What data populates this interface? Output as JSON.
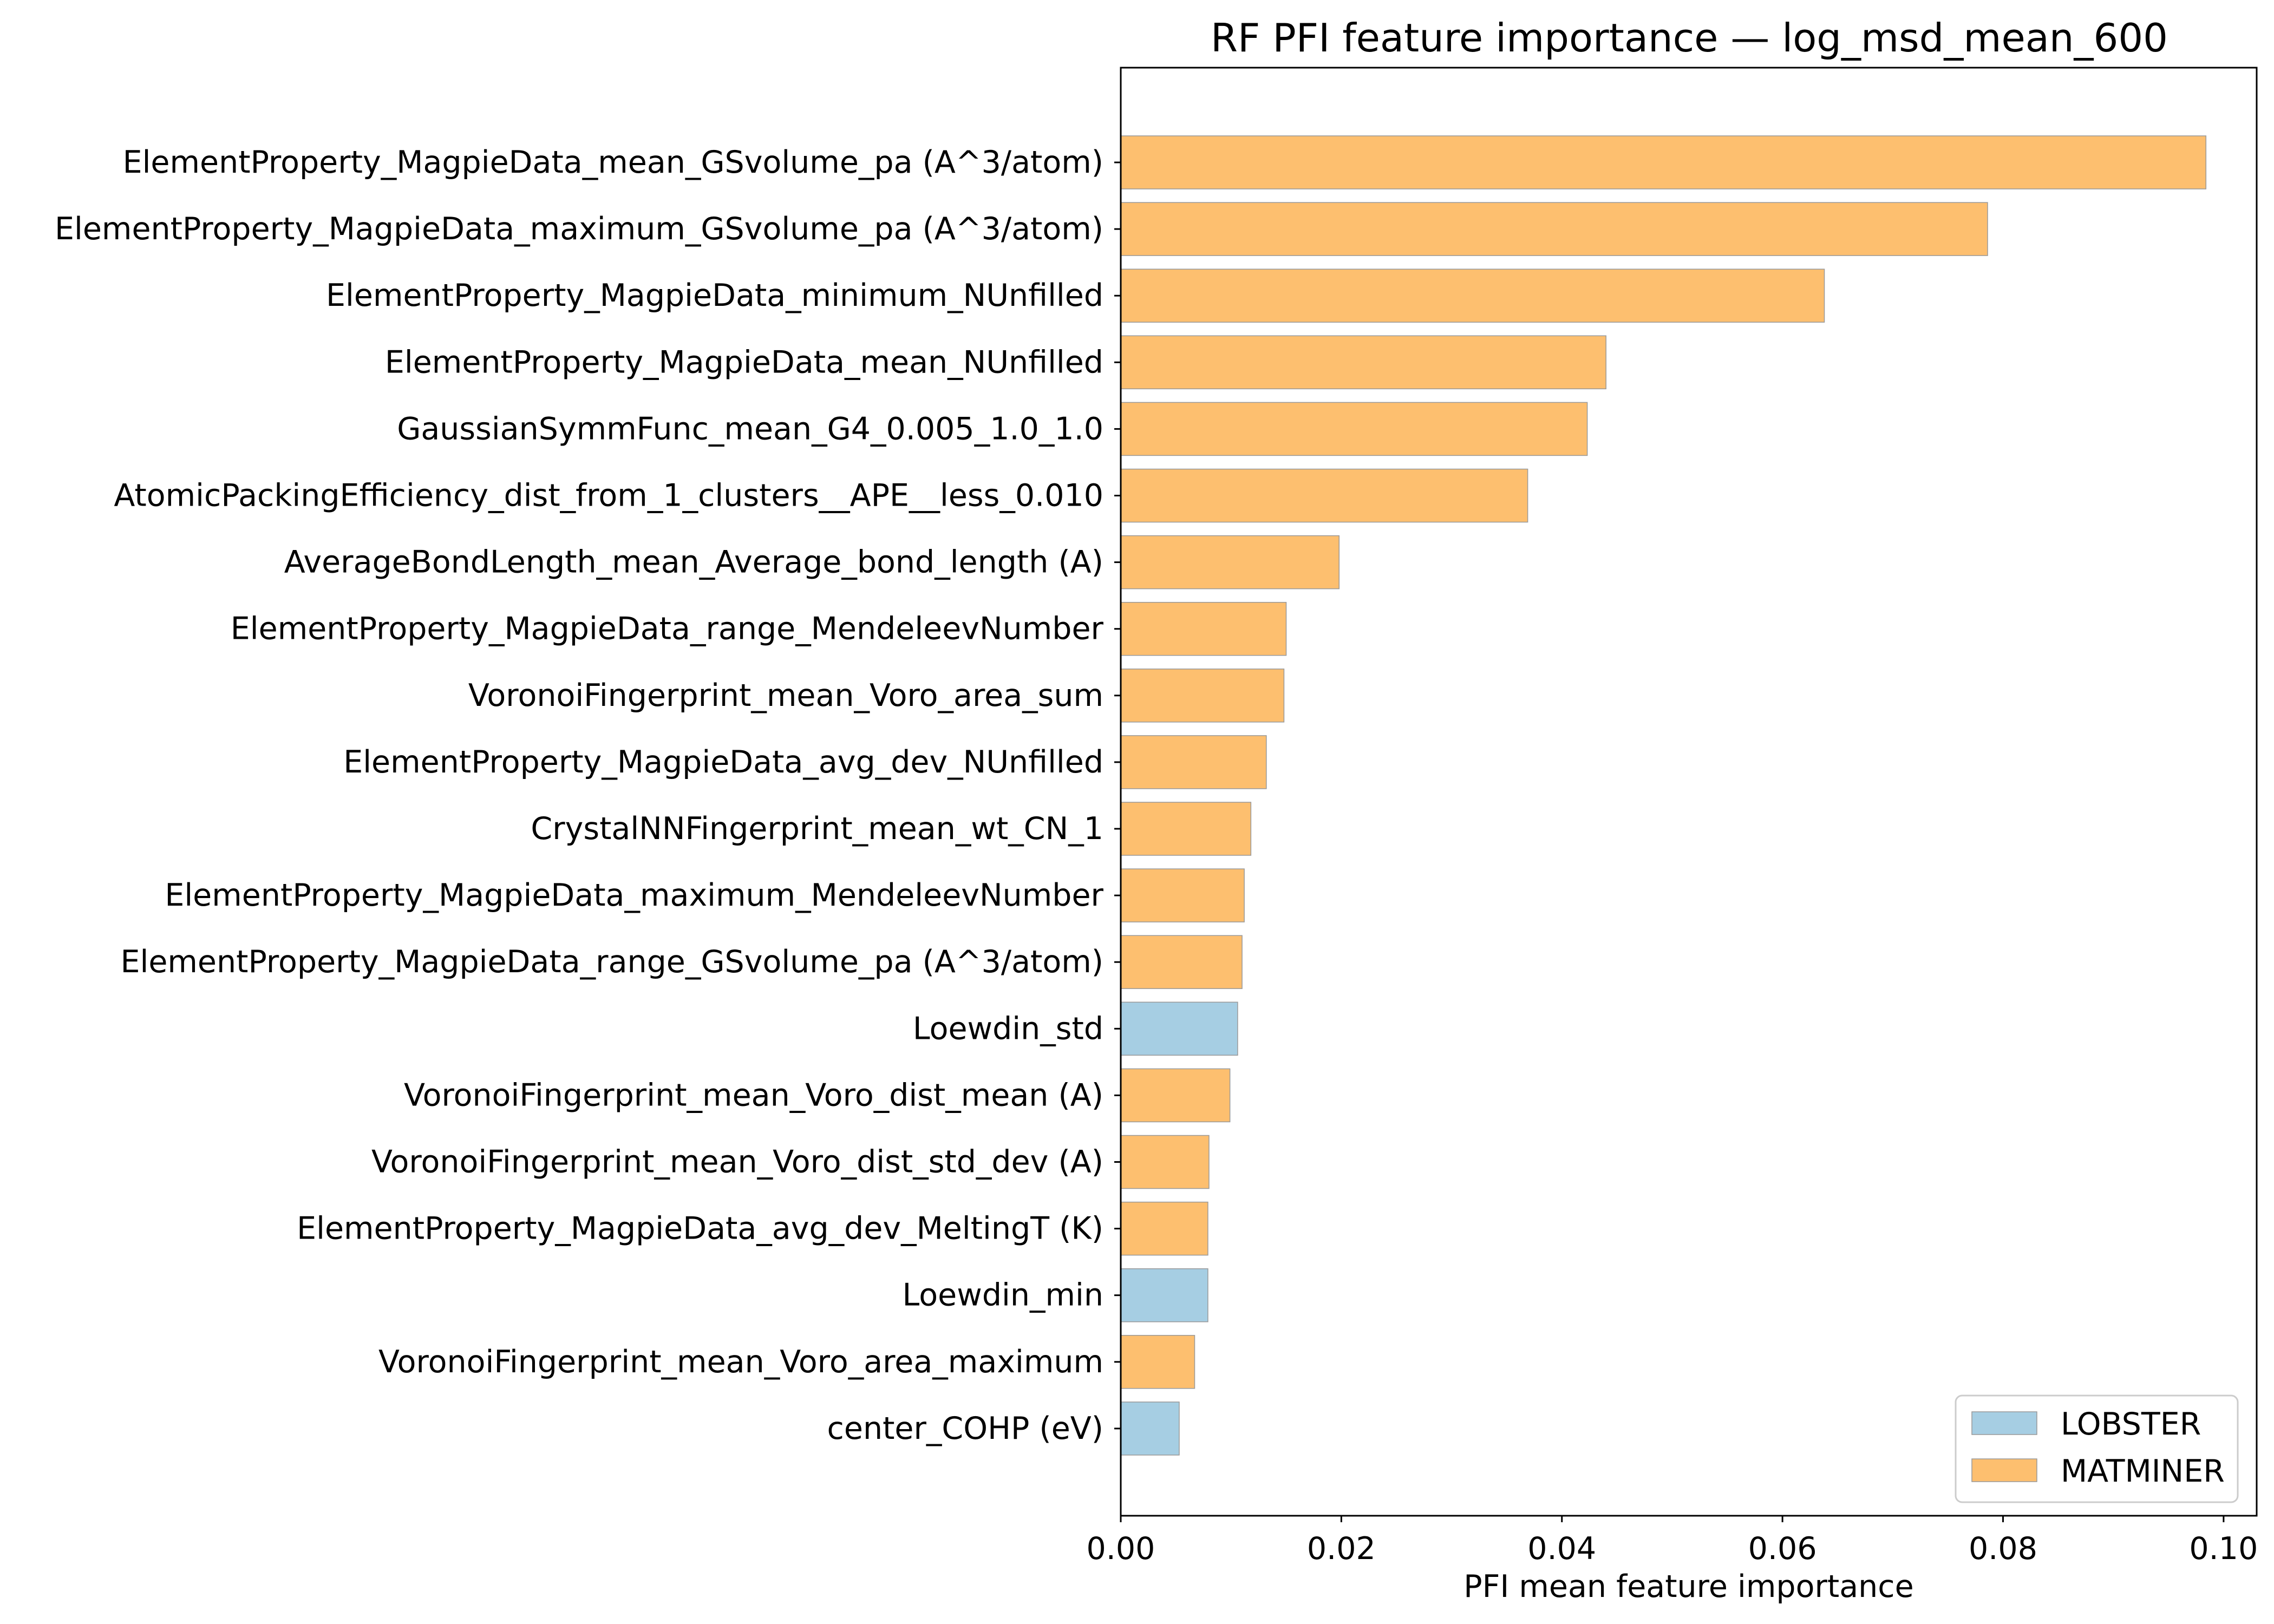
{
  "chart_data": {
    "type": "bar",
    "orientation": "horizontal",
    "title": "RF PFI feature importance — log_msd_mean_600",
    "xlabel": "PFI mean feature importance",
    "ylabel": "",
    "xlim": [
      0,
      0.103
    ],
    "x_ticks": [
      0.0,
      0.02,
      0.04,
      0.06,
      0.08,
      0.1
    ],
    "x_tick_labels": [
      "0.00",
      "0.02",
      "0.04",
      "0.06",
      "0.08",
      "0.10"
    ],
    "grid": false,
    "legend_position": "lower-right",
    "series": [
      {
        "name": "LOBSTER",
        "color": "#a6cee3"
      },
      {
        "name": "MATMINER",
        "color": "#fdbf6f"
      }
    ],
    "categories": [
      "ElementProperty_MagpieData_mean_GSvolume_pa (A^3/atom)",
      "ElementProperty_MagpieData_maximum_GSvolume_pa (A^3/atom)",
      "ElementProperty_MagpieData_minimum_NUnfilled",
      "ElementProperty_MagpieData_mean_NUnfilled",
      "GaussianSymmFunc_mean_G4_0.005_1.0_1.0",
      "AtomicPackingEfficiency_dist_from_1_clusters__APE__less_0.010",
      "AverageBondLength_mean_Average_bond_length (A)",
      "ElementProperty_MagpieData_range_MendeleevNumber",
      "VoronoiFingerprint_mean_Voro_area_sum",
      "ElementProperty_MagpieData_avg_dev_NUnfilled",
      "CrystalNNFingerprint_mean_wt_CN_1",
      "ElementProperty_MagpieData_maximum_MendeleevNumber",
      "ElementProperty_MagpieData_range_GSvolume_pa (A^3/atom)",
      "Loewdin_std",
      "VoronoiFingerprint_mean_Voro_dist_mean (A)",
      "VoronoiFingerprint_mean_Voro_dist_std_dev (A)",
      "ElementProperty_MagpieData_avg_dev_MeltingT (K)",
      "Loewdin_min",
      "VoronoiFingerprint_mean_Voro_area_maximum",
      "center_COHP (eV)"
    ],
    "values": [
      0.0984,
      0.0786,
      0.0638,
      0.044,
      0.0423,
      0.0369,
      0.0198,
      0.015,
      0.0148,
      0.0132,
      0.0118,
      0.0112,
      0.011,
      0.0106,
      0.0099,
      0.008,
      0.0079,
      0.0079,
      0.0067,
      0.0053
    ],
    "groups": [
      "MATMINER",
      "MATMINER",
      "MATMINER",
      "MATMINER",
      "MATMINER",
      "MATMINER",
      "MATMINER",
      "MATMINER",
      "MATMINER",
      "MATMINER",
      "MATMINER",
      "MATMINER",
      "MATMINER",
      "LOBSTER",
      "MATMINER",
      "MATMINER",
      "MATMINER",
      "LOBSTER",
      "MATMINER",
      "LOBSTER"
    ]
  }
}
